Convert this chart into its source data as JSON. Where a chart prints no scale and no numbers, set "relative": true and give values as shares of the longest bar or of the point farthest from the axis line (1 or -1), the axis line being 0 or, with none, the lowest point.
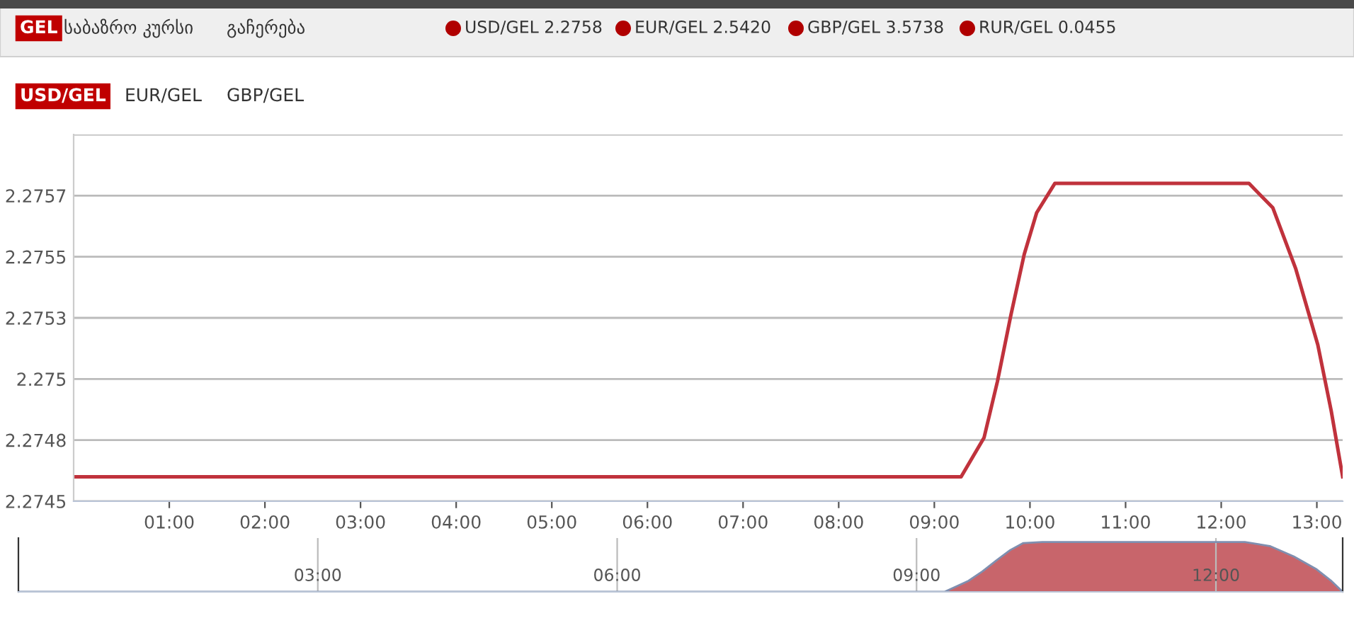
{
  "chart_data": [
    {
      "type": "line",
      "annotations": [
        "GEL",
        "საბაზრო კურსი",
        "გაჩერება",
        "USD/GEL 2.2758",
        "EUR/GEL 2.5420",
        "GBP/GEL 3.5738",
        "RUR/GEL 0.0455",
        "USD/GEL",
        "EUR/GEL",
        "GBP/GEL"
      ],
      "x": [
        0.0,
        9.28,
        9.52,
        9.66,
        9.8,
        9.94,
        10.07,
        10.26,
        12.29,
        12.54,
        12.78,
        13.01,
        13.15,
        13.27
      ],
      "series": [
        {
          "color": "#c0323c",
          "values": [
            2.2746,
            2.2746,
            2.27476,
            2.27499,
            2.27526,
            2.27551,
            2.27568,
            2.2758,
            2.2758,
            2.2757,
            2.27545,
            2.27514,
            2.27487,
            2.2746
          ]
        }
      ],
      "xlim": [
        0.0,
        13.27
      ],
      "xticks": [
        {
          "value": 1,
          "label": "01:00"
        },
        {
          "value": 2,
          "label": "02:00"
        },
        {
          "value": 3,
          "label": "03:00"
        },
        {
          "value": 4,
          "label": "04:00"
        },
        {
          "value": 5,
          "label": "05:00"
        },
        {
          "value": 6,
          "label": "06:00"
        },
        {
          "value": 7,
          "label": "07:00"
        },
        {
          "value": 8,
          "label": "08:00"
        },
        {
          "value": 9,
          "label": "09:00"
        },
        {
          "value": 10,
          "label": "10:00"
        },
        {
          "value": 11,
          "label": "11:00"
        },
        {
          "value": 12,
          "label": "12:00"
        },
        {
          "value": 13,
          "label": "13:00"
        }
      ],
      "ylim": [
        2.2745,
        2.276
      ],
      "yticks": [
        2.2745,
        {
          "value": 2.27475,
          "label": "2.2748"
        },
        2.275,
        {
          "value": 2.27525,
          "label": "2.2753"
        },
        2.2755,
        {
          "value": 2.27575,
          "label": "2.2757"
        },
        {
          "value": 2.276,
          "label": null
        }
      ],
      "grid": "y",
      "marker": "none",
      "line_style": "solid"
    },
    {
      "type": "area",
      "relative": true,
      "x": [
        0.0,
        9.28,
        9.52,
        9.66,
        9.8,
        9.94,
        10.07,
        10.26,
        12.29,
        12.54,
        12.78,
        13.01,
        13.15,
        13.27
      ],
      "series": [
        {
          "color": "#b5313a",
          "values": [
            0,
            0,
            0.22,
            0.41,
            0.63,
            0.84,
            0.98,
            1,
            1,
            0.92,
            0.71,
            0.45,
            0.23,
            0
          ]
        }
      ],
      "xlim": [
        0.0,
        13.27
      ],
      "xticks": [
        {
          "value": 3,
          "label": "03:00"
        },
        {
          "value": 6,
          "label": "06:00"
        },
        {
          "value": 9,
          "label": "09:00"
        },
        {
          "value": 12,
          "label": "12:00"
        }
      ],
      "grid": "x",
      "tick_labels": "x"
    }
  ]
}
